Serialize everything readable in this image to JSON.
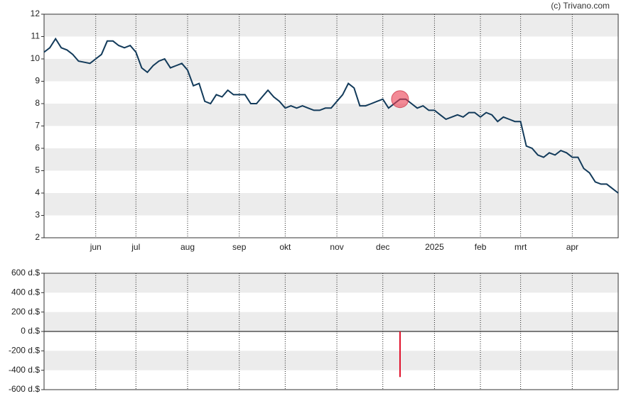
{
  "credit": "(c) Trivano.com",
  "chart_data": [
    {
      "type": "line",
      "color": "#123a5a",
      "stripes": true,
      "categories": [
        null,
        null,
        null,
        null,
        null,
        null,
        null,
        null,
        null,
        "jun",
        null,
        null,
        null,
        null,
        null,
        null,
        "jul",
        null,
        null,
        null,
        null,
        null,
        null,
        null,
        null,
        "aug",
        null,
        null,
        null,
        null,
        null,
        null,
        null,
        null,
        "sep",
        null,
        null,
        null,
        null,
        null,
        null,
        null,
        "okt",
        null,
        null,
        null,
        null,
        null,
        null,
        null,
        null,
        "nov",
        null,
        null,
        null,
        null,
        null,
        null,
        null,
        "dec",
        null,
        null,
        null,
        null,
        null,
        null,
        null,
        null,
        "2025",
        null,
        null,
        null,
        null,
        null,
        null,
        null,
        "feb",
        null,
        null,
        null,
        null,
        null,
        null,
        "mrt",
        null,
        null,
        null,
        null,
        null,
        null,
        null,
        null,
        "apr",
        null,
        null,
        null,
        null,
        null,
        null,
        null,
        null
      ],
      "values": [
        10.3,
        10.5,
        10.9,
        10.5,
        10.4,
        10.2,
        9.9,
        9.85,
        9.8,
        10.0,
        10.2,
        10.8,
        10.8,
        10.6,
        10.5,
        10.6,
        10.3,
        9.6,
        9.4,
        9.7,
        9.9,
        10.0,
        9.6,
        9.7,
        9.8,
        9.5,
        8.8,
        8.9,
        8.1,
        8.0,
        8.4,
        8.3,
        8.6,
        8.4,
        8.4,
        8.4,
        8.0,
        8.0,
        8.3,
        8.6,
        8.3,
        8.1,
        7.8,
        7.9,
        7.8,
        7.9,
        7.8,
        7.7,
        7.7,
        7.8,
        7.8,
        8.1,
        8.4,
        8.9,
        8.7,
        7.9,
        7.9,
        8.0,
        8.1,
        8.2,
        7.8,
        8.0,
        8.2,
        8.2,
        8.0,
        7.8,
        7.9,
        7.7,
        7.7,
        7.5,
        7.3,
        7.4,
        7.5,
        7.4,
        7.6,
        7.6,
        7.4,
        7.6,
        7.5,
        7.2,
        7.4,
        7.3,
        7.2,
        7.2,
        6.1,
        6.0,
        5.7,
        5.6,
        5.8,
        5.7,
        5.9,
        5.8,
        5.6,
        5.6,
        5.1,
        4.9,
        4.5,
        4.4,
        4.4,
        4.2,
        4.0
      ],
      "ylim": [
        2,
        12
      ],
      "yticks": [
        2,
        3,
        4,
        5,
        6,
        7,
        8,
        9,
        10,
        11,
        12
      ]
    },
    {
      "type": "bar",
      "color": "#e0102a",
      "stripes": true,
      "values": [
        null,
        null,
        null,
        null,
        null,
        null,
        null,
        null,
        null,
        null,
        null,
        null,
        null,
        null,
        null,
        null,
        null,
        null,
        null,
        null,
        null,
        null,
        null,
        null,
        null,
        null,
        null,
        null,
        null,
        null,
        null,
        null,
        null,
        null,
        null,
        null,
        null,
        null,
        null,
        null,
        null,
        null,
        null,
        null,
        null,
        null,
        null,
        null,
        null,
        null,
        null,
        null,
        null,
        null,
        null,
        null,
        null,
        null,
        null,
        null,
        null,
        null,
        -470,
        null,
        null,
        null,
        null,
        null,
        null,
        null,
        null,
        null,
        null,
        null,
        null,
        null,
        null,
        null,
        null,
        null,
        null,
        null,
        null,
        null,
        null,
        null,
        null,
        null,
        null,
        null,
        null,
        null,
        null,
        null,
        null,
        null,
        null,
        null,
        null,
        null,
        null
      ],
      "ylim": [
        -600,
        600
      ],
      "yticks": [
        {
          "value": -600,
          "label": "-600 d.$"
        },
        {
          "value": -400,
          "label": "-400 d.$"
        },
        {
          "value": -200,
          "label": "-200 d.$"
        },
        {
          "value": 0,
          "label": "0 d.$"
        },
        {
          "value": 200,
          "label": "200 d.$"
        },
        {
          "value": 400,
          "label": "400 d.$"
        },
        {
          "value": 600,
          "label": "600 d.$"
        }
      ]
    }
  ]
}
